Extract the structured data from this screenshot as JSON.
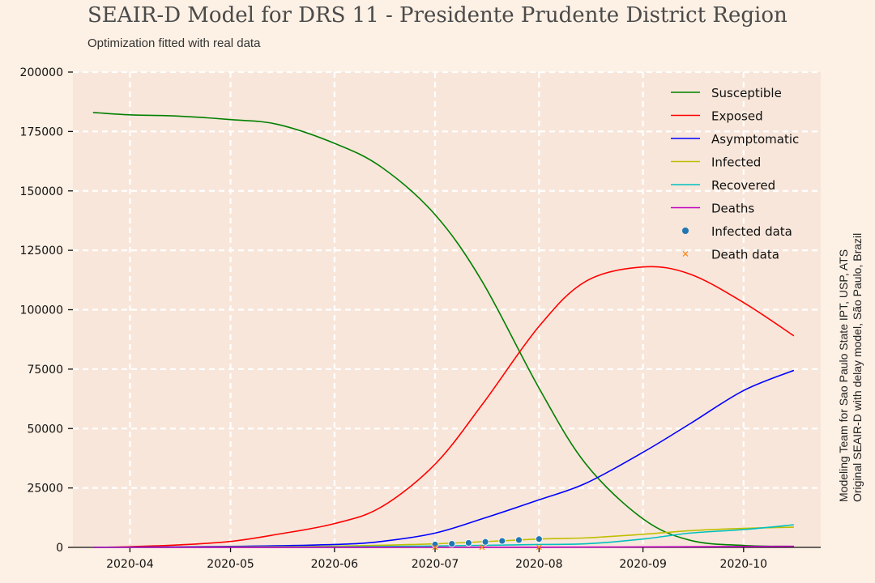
{
  "chart_data": {
    "type": "line",
    "title": "SEAIR-D Model for DRS 11 - Presidente Prudente District Region",
    "subtitle": "Optimization fitted with real data",
    "side_note": [
      "Modeling Team for Sao Paulo State IPT, USP, ATS",
      "Original SEAIR-D with delay model, São Paulo, Brazil"
    ],
    "xlabel": "",
    "ylabel": "",
    "xlim": [
      "2020-03-15",
      "2020-10-24"
    ],
    "ylim": [
      0,
      200000
    ],
    "x_ticks": [
      "2020-04-01",
      "2020-05-01",
      "2020-06-01",
      "2020-07-01",
      "2020-08-01",
      "2020-09-01",
      "2020-10-01"
    ],
    "x_tick_labels": [
      "2020-04",
      "2020-05",
      "2020-06",
      "2020-07",
      "2020-08",
      "2020-09",
      "2020-10"
    ],
    "y_ticks": [
      0,
      25000,
      50000,
      75000,
      100000,
      125000,
      150000,
      175000,
      200000
    ],
    "y_tick_labels": [
      "0",
      "25000",
      "50000",
      "75000",
      "100000",
      "125000",
      "150000",
      "175000",
      "200000"
    ],
    "grid": true,
    "legend_position": "top-right",
    "series": [
      {
        "name": "Susceptible",
        "color": "#008000",
        "kind": "line",
        "x": [
          "2020-03-21",
          "2020-04-01",
          "2020-04-15",
          "2020-05-01",
          "2020-05-15",
          "2020-06-01",
          "2020-06-15",
          "2020-07-01",
          "2020-07-15",
          "2020-08-01",
          "2020-08-15",
          "2020-09-01",
          "2020-09-15",
          "2020-10-01",
          "2020-10-16"
        ],
        "y": [
          183000,
          182000,
          181500,
          180000,
          178000,
          170000,
          160000,
          140000,
          112000,
          67000,
          35000,
          12000,
          3000,
          800,
          400
        ]
      },
      {
        "name": "Exposed",
        "color": "#ff0000",
        "kind": "line",
        "x": [
          "2020-03-21",
          "2020-04-01",
          "2020-04-15",
          "2020-05-01",
          "2020-05-15",
          "2020-06-01",
          "2020-06-15",
          "2020-07-01",
          "2020-07-15",
          "2020-08-01",
          "2020-08-15",
          "2020-09-01",
          "2020-09-15",
          "2020-10-01",
          "2020-10-16"
        ],
        "y": [
          0,
          300,
          1000,
          2500,
          5500,
          10000,
          17000,
          35000,
          60000,
          93000,
          112000,
          118000,
          115000,
          103000,
          89000
        ]
      },
      {
        "name": "Asymptomatic",
        "color": "#0000ff",
        "kind": "line",
        "x": [
          "2020-03-21",
          "2020-05-01",
          "2020-06-01",
          "2020-06-15",
          "2020-07-01",
          "2020-07-15",
          "2020-08-01",
          "2020-08-15",
          "2020-09-01",
          "2020-09-15",
          "2020-10-01",
          "2020-10-16"
        ],
        "y": [
          0,
          400,
          1200,
          2500,
          6000,
          12000,
          20000,
          27000,
          40000,
          52000,
          66000,
          74500
        ]
      },
      {
        "name": "Infected",
        "color": "#bfbf00",
        "kind": "line",
        "x": [
          "2020-03-21",
          "2020-05-01",
          "2020-06-01",
          "2020-07-01",
          "2020-08-01",
          "2020-08-15",
          "2020-09-01",
          "2020-09-15",
          "2020-10-01",
          "2020-10-16"
        ],
        "y": [
          0,
          200,
          500,
          1500,
          3500,
          4000,
          5500,
          7000,
          8000,
          8500
        ]
      },
      {
        "name": "Recovered",
        "color": "#00bfbf",
        "kind": "line",
        "x": [
          "2020-03-21",
          "2020-06-01",
          "2020-07-01",
          "2020-08-01",
          "2020-08-15",
          "2020-09-01",
          "2020-09-15",
          "2020-10-01",
          "2020-10-16"
        ],
        "y": [
          0,
          200,
          600,
          1200,
          1500,
          3500,
          6000,
          7500,
          9500
        ]
      },
      {
        "name": "Deaths",
        "color": "#bf00bf",
        "kind": "line",
        "x": [
          "2020-03-21",
          "2020-06-01",
          "2020-08-01",
          "2020-09-01",
          "2020-10-01",
          "2020-10-16"
        ],
        "y": [
          0,
          20,
          80,
          200,
          350,
          450
        ]
      },
      {
        "name": "Infected data",
        "color": "#1f77b4",
        "kind": "scatter",
        "x": [
          "2020-07-01",
          "2020-07-06",
          "2020-07-11",
          "2020-07-16",
          "2020-07-21",
          "2020-07-26",
          "2020-08-01"
        ],
        "y": [
          1200,
          1500,
          1900,
          2300,
          2700,
          3100,
          3500
        ]
      },
      {
        "name": "Death data",
        "color": "#ff7f0e",
        "kind": "scatter-x",
        "x": [
          "2020-07-01",
          "2020-07-15",
          "2020-08-01"
        ],
        "y": [
          10,
          20,
          40
        ]
      }
    ]
  }
}
